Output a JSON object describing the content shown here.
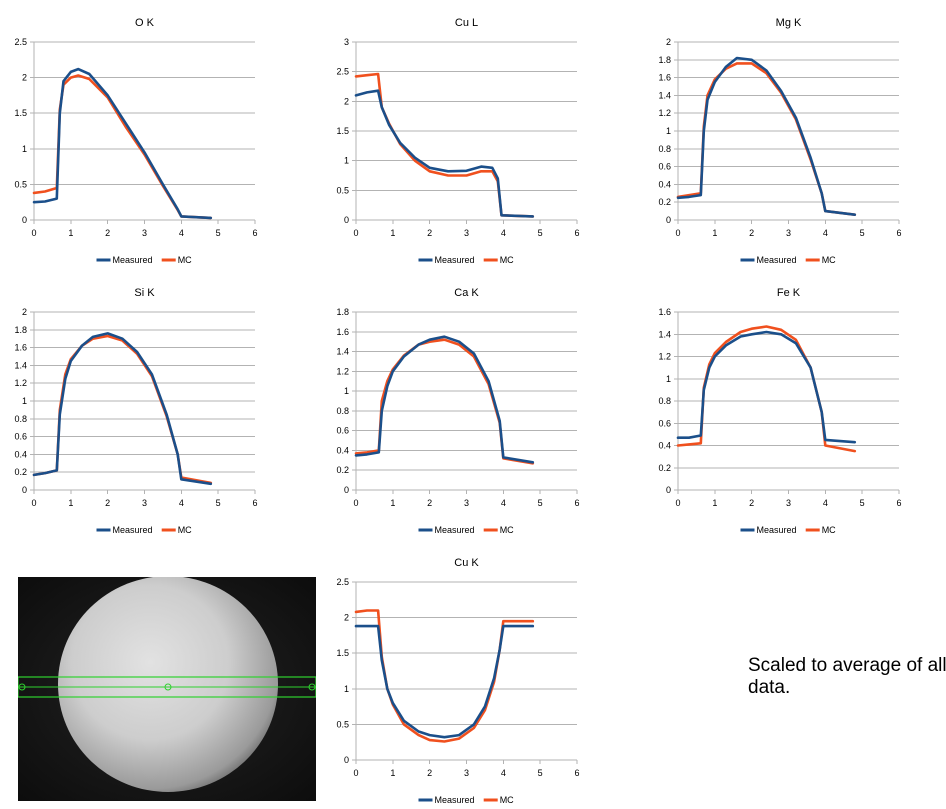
{
  "note": "Scaled to average of all data.",
  "colors": {
    "Measured": "#1b4f8a",
    "MC": "#f0501e"
  },
  "image": {
    "description_icon": "micrograph-image"
  },
  "chart_data": [
    {
      "type": "line",
      "title": "O K",
      "xlim": [
        0,
        6
      ],
      "ylim": [
        0,
        2.5
      ],
      "xticks": [
        0,
        1,
        2,
        3,
        4,
        5,
        6
      ],
      "yticks": [
        0,
        0.5,
        1,
        1.5,
        2,
        2.5
      ],
      "legend": "bottom",
      "series": [
        {
          "name": "Measured",
          "x": [
            0,
            0.3,
            0.62,
            0.7,
            0.8,
            1.0,
            1.2,
            1.5,
            2.0,
            2.5,
            3.0,
            3.5,
            3.9,
            4.0,
            4.8
          ],
          "y": [
            0.25,
            0.26,
            0.3,
            1.5,
            1.95,
            2.08,
            2.12,
            2.05,
            1.75,
            1.35,
            0.95,
            0.5,
            0.15,
            0.05,
            0.03
          ]
        },
        {
          "name": "MC",
          "x": [
            0,
            0.3,
            0.62,
            0.7,
            0.8,
            1.0,
            1.2,
            1.5,
            2.0,
            2.5,
            3.0,
            3.5,
            3.9,
            4.0,
            4.8
          ],
          "y": [
            0.38,
            0.4,
            0.45,
            1.55,
            1.9,
            2.0,
            2.03,
            1.98,
            1.72,
            1.3,
            0.92,
            0.48,
            0.14,
            0.05,
            0.03
          ]
        }
      ]
    },
    {
      "type": "line",
      "title": "Cu L",
      "xlim": [
        0,
        6
      ],
      "ylim": [
        0,
        3
      ],
      "xticks": [
        0,
        1,
        2,
        3,
        4,
        5,
        6
      ],
      "yticks": [
        0,
        0.5,
        1,
        1.5,
        2,
        2.5,
        3
      ],
      "legend": "bottom",
      "series": [
        {
          "name": "Measured",
          "x": [
            0,
            0.3,
            0.6,
            0.7,
            0.9,
            1.2,
            1.6,
            2.0,
            2.5,
            3.0,
            3.4,
            3.7,
            3.85,
            3.95,
            4.8
          ],
          "y": [
            2.1,
            2.15,
            2.18,
            1.9,
            1.6,
            1.3,
            1.05,
            0.88,
            0.82,
            0.83,
            0.9,
            0.88,
            0.7,
            0.08,
            0.06
          ]
        },
        {
          "name": "MC",
          "x": [
            0,
            0.3,
            0.6,
            0.7,
            0.9,
            1.2,
            1.6,
            2.0,
            2.5,
            3.0,
            3.4,
            3.7,
            3.85,
            3.95,
            4.8
          ],
          "y": [
            2.42,
            2.44,
            2.46,
            1.9,
            1.62,
            1.28,
            1.0,
            0.82,
            0.75,
            0.75,
            0.82,
            0.82,
            0.65,
            0.08,
            0.06
          ]
        }
      ]
    },
    {
      "type": "line",
      "title": "Mg K",
      "xlim": [
        0,
        6
      ],
      "ylim": [
        0,
        2
      ],
      "xticks": [
        0,
        1,
        2,
        3,
        4,
        5,
        6
      ],
      "yticks": [
        0,
        0.2,
        0.4,
        0.6,
        0.8,
        1,
        1.2,
        1.4,
        1.6,
        1.8,
        2
      ],
      "legend": "bottom",
      "series": [
        {
          "name": "Measured",
          "x": [
            0,
            0.3,
            0.62,
            0.7,
            0.8,
            1.0,
            1.3,
            1.6,
            2.0,
            2.4,
            2.8,
            3.2,
            3.6,
            3.9,
            4.0,
            4.8
          ],
          "y": [
            0.25,
            0.26,
            0.28,
            1.0,
            1.35,
            1.55,
            1.72,
            1.82,
            1.8,
            1.68,
            1.45,
            1.15,
            0.7,
            0.3,
            0.1,
            0.06
          ]
        },
        {
          "name": "MC",
          "x": [
            0,
            0.3,
            0.62,
            0.7,
            0.8,
            1.0,
            1.3,
            1.6,
            2.0,
            2.4,
            2.8,
            3.2,
            3.6,
            3.9,
            4.0,
            4.8
          ],
          "y": [
            0.26,
            0.28,
            0.3,
            1.05,
            1.4,
            1.58,
            1.7,
            1.76,
            1.76,
            1.65,
            1.43,
            1.13,
            0.68,
            0.3,
            0.1,
            0.06
          ]
        }
      ]
    },
    {
      "type": "line",
      "title": "Si K",
      "xlim": [
        0,
        6
      ],
      "ylim": [
        0,
        2
      ],
      "xticks": [
        0,
        1,
        2,
        3,
        4,
        5,
        6
      ],
      "yticks": [
        0,
        0.2,
        0.4,
        0.6,
        0.8,
        1,
        1.2,
        1.4,
        1.6,
        1.8,
        2
      ],
      "legend": "bottom",
      "series": [
        {
          "name": "Measured",
          "x": [
            0,
            0.3,
            0.62,
            0.7,
            0.85,
            1.0,
            1.3,
            1.6,
            2.0,
            2.4,
            2.8,
            3.2,
            3.6,
            3.9,
            4.0,
            4.8
          ],
          "y": [
            0.17,
            0.19,
            0.22,
            0.85,
            1.25,
            1.45,
            1.62,
            1.72,
            1.76,
            1.7,
            1.55,
            1.3,
            0.85,
            0.4,
            0.12,
            0.07
          ]
        },
        {
          "name": "MC",
          "x": [
            0,
            0.3,
            0.62,
            0.7,
            0.85,
            1.0,
            1.3,
            1.6,
            2.0,
            2.4,
            2.8,
            3.2,
            3.6,
            3.9,
            4.0,
            4.8
          ],
          "y": [
            0.17,
            0.19,
            0.22,
            0.9,
            1.3,
            1.47,
            1.62,
            1.7,
            1.73,
            1.68,
            1.53,
            1.28,
            0.83,
            0.4,
            0.14,
            0.08
          ]
        }
      ]
    },
    {
      "type": "line",
      "title": "Ca K",
      "xlim": [
        0,
        6
      ],
      "ylim": [
        0,
        1.8
      ],
      "xticks": [
        0,
        1,
        2,
        3,
        4,
        5,
        6
      ],
      "yticks": [
        0,
        0.2,
        0.4,
        0.6,
        0.8,
        1,
        1.2,
        1.4,
        1.6,
        1.8
      ],
      "legend": "bottom",
      "series": [
        {
          "name": "Measured",
          "x": [
            0,
            0.3,
            0.62,
            0.7,
            0.85,
            1.0,
            1.3,
            1.7,
            2.0,
            2.4,
            2.8,
            3.2,
            3.6,
            3.9,
            4.0,
            4.8
          ],
          "y": [
            0.35,
            0.36,
            0.38,
            0.8,
            1.05,
            1.2,
            1.35,
            1.47,
            1.52,
            1.55,
            1.5,
            1.38,
            1.1,
            0.7,
            0.33,
            0.28
          ]
        },
        {
          "name": "MC",
          "x": [
            0,
            0.3,
            0.62,
            0.7,
            0.85,
            1.0,
            1.3,
            1.7,
            2.0,
            2.4,
            2.8,
            3.2,
            3.6,
            3.9,
            4.0,
            4.8
          ],
          "y": [
            0.37,
            0.38,
            0.4,
            0.9,
            1.1,
            1.22,
            1.36,
            1.47,
            1.5,
            1.52,
            1.47,
            1.35,
            1.07,
            0.68,
            0.32,
            0.27
          ]
        }
      ]
    },
    {
      "type": "line",
      "title": "Fe K",
      "xlim": [
        0,
        6
      ],
      "ylim": [
        0,
        1.6
      ],
      "xticks": [
        0,
        1,
        2,
        3,
        4,
        5,
        6
      ],
      "yticks": [
        0,
        0.2,
        0.4,
        0.6,
        0.8,
        1,
        1.2,
        1.4,
        1.6
      ],
      "legend": "bottom",
      "series": [
        {
          "name": "Measured",
          "x": [
            0,
            0.3,
            0.62,
            0.7,
            0.85,
            1.0,
            1.3,
            1.7,
            2.0,
            2.4,
            2.8,
            3.2,
            3.6,
            3.9,
            4.0,
            4.8
          ],
          "y": [
            0.47,
            0.47,
            0.49,
            0.9,
            1.1,
            1.2,
            1.3,
            1.38,
            1.4,
            1.42,
            1.4,
            1.32,
            1.1,
            0.7,
            0.45,
            0.43
          ]
        },
        {
          "name": "MC",
          "x": [
            0,
            0.3,
            0.62,
            0.7,
            0.85,
            1.0,
            1.3,
            1.7,
            2.0,
            2.4,
            2.8,
            3.2,
            3.6,
            3.9,
            4.0,
            4.8
          ],
          "y": [
            0.4,
            0.41,
            0.42,
            0.92,
            1.13,
            1.23,
            1.33,
            1.42,
            1.45,
            1.47,
            1.44,
            1.35,
            1.1,
            0.7,
            0.4,
            0.35
          ]
        }
      ]
    },
    {
      "type": "line",
      "title": "Cu K",
      "xlim": [
        0,
        6
      ],
      "ylim": [
        0,
        2.5
      ],
      "xticks": [
        0,
        1,
        2,
        3,
        4,
        5,
        6
      ],
      "yticks": [
        0,
        0.5,
        1,
        1.5,
        2,
        2.5
      ],
      "legend": "bottom",
      "series": [
        {
          "name": "Measured",
          "x": [
            0,
            0.3,
            0.6,
            0.7,
            0.85,
            1.0,
            1.3,
            1.7,
            2.0,
            2.4,
            2.8,
            3.2,
            3.5,
            3.75,
            3.9,
            4.0,
            4.8
          ],
          "y": [
            1.88,
            1.88,
            1.88,
            1.4,
            1.0,
            0.8,
            0.55,
            0.4,
            0.35,
            0.32,
            0.35,
            0.5,
            0.75,
            1.15,
            1.55,
            1.88,
            1.88
          ]
        },
        {
          "name": "MC",
          "x": [
            0,
            0.3,
            0.6,
            0.7,
            0.85,
            1.0,
            1.3,
            1.7,
            2.0,
            2.4,
            2.8,
            3.2,
            3.5,
            3.75,
            3.9,
            4.0,
            4.8
          ],
          "y": [
            2.08,
            2.1,
            2.1,
            1.45,
            1.0,
            0.78,
            0.5,
            0.35,
            0.28,
            0.26,
            0.3,
            0.45,
            0.7,
            1.1,
            1.55,
            1.95,
            1.95
          ]
        }
      ]
    }
  ]
}
